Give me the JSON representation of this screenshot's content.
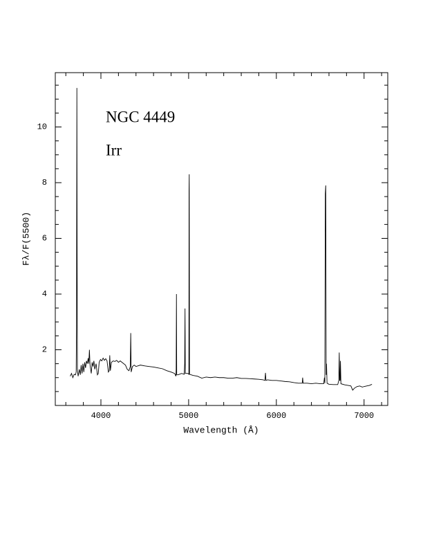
{
  "chart_data": {
    "type": "line",
    "annotations": [
      "NGC 4449",
      "Irr"
    ],
    "xlabel": "Wavelength (Å)",
    "ylabel": "Fλ/F(5500)",
    "color": "#000000",
    "xlim": [
      3480,
      7270
    ],
    "ylim": [
      0,
      11.95
    ],
    "xticks": [
      4000,
      5000,
      6000,
      7000
    ],
    "yticks": [
      2,
      4,
      6,
      8,
      10
    ],
    "xticks_minor": [
      3600,
      3800,
      4200,
      4400,
      4600,
      4800,
      5200,
      5400,
      5600,
      5800,
      6200,
      6400,
      6600,
      6800,
      7200
    ],
    "yticks_minor": [
      0.5,
      1,
      1.5,
      2.5,
      3,
      3.5,
      4.5,
      5,
      5.5,
      6.5,
      7,
      7.5,
      8.5,
      9,
      9.5,
      10.5,
      11,
      11.5
    ],
    "x": [
      3650,
      3665,
      3680,
      3695,
      3710,
      3718,
      3722,
      3726,
      3729,
      3732,
      3740,
      3755,
      3765,
      3775,
      3785,
      3795,
      3805,
      3815,
      3825,
      3835,
      3845,
      3855,
      3862,
      3869,
      3876,
      3890,
      3900,
      3910,
      3920,
      3930,
      3945,
      3960,
      3970,
      3980,
      3995,
      4010,
      4025,
      4040,
      4055,
      4070,
      4085,
      4095,
      4101,
      4108,
      4120,
      4140,
      4160,
      4180,
      4200,
      4220,
      4240,
      4260,
      4280,
      4300,
      4320,
      4335,
      4340,
      4345,
      4360,
      4380,
      4400,
      4450,
      4500,
      4550,
      4600,
      4650,
      4700,
      4750,
      4800,
      4840,
      4855,
      4858,
      4861,
      4864,
      4880,
      4920,
      4950,
      4955,
      4959,
      4962,
      4990,
      5003,
      5005,
      5007,
      5010,
      5050,
      5100,
      5150,
      5200,
      5250,
      5300,
      5350,
      5400,
      5450,
      5500,
      5550,
      5600,
      5650,
      5700,
      5750,
      5800,
      5850,
      5870,
      5876,
      5882,
      5900,
      5950,
      6000,
      6050,
      6100,
      6150,
      6200,
      6250,
      6295,
      6300,
      6305,
      6350,
      6400,
      6450,
      6500,
      6540,
      6548,
      6553,
      6558,
      6563,
      6568,
      6572,
      6578,
      6600,
      6650,
      6700,
      6712,
      6717,
      6722,
      6727,
      6731,
      6736,
      6780,
      6820,
      6850,
      6870,
      6890,
      6920,
      6950,
      6980,
      7000,
      7030,
      7060,
      7090
    ],
    "values": [
      1.05,
      1.15,
      1.0,
      1.12,
      1.1,
      1.2,
      2.8,
      11.4,
      5.2,
      1.3,
      1.05,
      1.3,
      1.1,
      1.45,
      1.15,
      1.5,
      1.2,
      1.55,
      1.35,
      1.6,
      1.5,
      1.7,
      1.5,
      2.0,
      1.45,
      1.15,
      1.55,
      1.4,
      1.6,
      1.3,
      1.5,
      1.1,
      1.15,
      1.55,
      1.65,
      1.6,
      1.7,
      1.62,
      1.68,
      1.6,
      1.2,
      1.25,
      1.8,
      1.25,
      1.55,
      1.6,
      1.58,
      1.62,
      1.55,
      1.6,
      1.55,
      1.5,
      1.45,
      1.3,
      1.25,
      1.4,
      2.6,
      1.2,
      1.4,
      1.45,
      1.4,
      1.45,
      1.42,
      1.4,
      1.38,
      1.35,
      1.32,
      1.25,
      1.2,
      1.15,
      1.05,
      1.3,
      4.0,
      1.1,
      1.1,
      1.15,
      1.12,
      1.5,
      3.48,
      1.15,
      1.15,
      1.12,
      7.7,
      8.3,
      1.12,
      1.08,
      1.05,
      0.98,
      1.02,
      1.0,
      1.02,
      1.0,
      1.0,
      0.98,
      0.98,
      1.0,
      0.97,
      0.97,
      0.96,
      0.95,
      0.94,
      0.92,
      0.9,
      1.17,
      0.9,
      0.92,
      0.9,
      0.9,
      0.88,
      0.86,
      0.85,
      0.82,
      0.8,
      0.8,
      1.0,
      0.8,
      0.8,
      0.78,
      0.8,
      0.78,
      0.78,
      1.0,
      0.8,
      7.6,
      7.9,
      1.1,
      1.5,
      0.8,
      0.76,
      0.75,
      0.75,
      0.9,
      1.9,
      0.9,
      0.9,
      1.6,
      0.78,
      0.74,
      0.72,
      0.7,
      0.55,
      0.62,
      0.68,
      0.7,
      0.66,
      0.68,
      0.7,
      0.72,
      0.76
    ]
  }
}
